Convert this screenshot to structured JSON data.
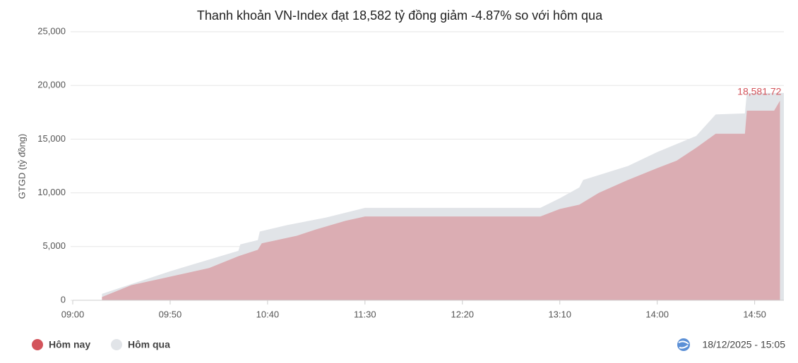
{
  "chart_data": {
    "type": "area",
    "title": "Thanh khoản VN-Index đạt 18,582 tỷ đồng giảm -4.87% so với hôm qua",
    "y_label": "GTGD (tỷ đồng)",
    "xlim": [
      "09:00",
      "15:05"
    ],
    "xticks": [
      "09:00",
      "09:50",
      "10:40",
      "11:30",
      "12:20",
      "13:10",
      "14:00",
      "14:50"
    ],
    "ylim": [
      0,
      25000
    ],
    "yticks": [
      0,
      {
        "value": 5000,
        "label": "5,000"
      },
      {
        "value": 10000,
        "label": "10,000"
      },
      {
        "value": 15000,
        "label": "15,000"
      },
      {
        "value": 20000,
        "label": "20,000"
      },
      {
        "value": 25000,
        "label": "25,000"
      }
    ],
    "grid": true,
    "series": [
      {
        "name": "Hôm qua",
        "color": "#e1e4e8",
        "x": [
          "09:15",
          "09:50",
          "10:25",
          "10:26",
          "10:35",
          "10:36",
          "10:50",
          "11:10",
          "11:30",
          "13:00",
          "13:10",
          "13:20",
          "13:22",
          "13:45",
          "14:00",
          "14:20",
          "14:30",
          "14:45",
          "14:46",
          "15:05"
        ],
        "values": [
          600,
          2700,
          4600,
          5200,
          5600,
          6400,
          7000,
          7700,
          8600,
          8600,
          9500,
          10500,
          11200,
          12500,
          13800,
          15300,
          17300,
          17400,
          19300,
          19300
        ]
      },
      {
        "name": "Hôm nay",
        "color": "#d3545b",
        "x": [
          "09:15",
          "09:30",
          "09:50",
          "10:10",
          "10:25",
          "10:35",
          "10:37",
          "10:55",
          "11:05",
          "11:20",
          "11:30",
          "13:00",
          "13:10",
          "13:20",
          "13:30",
          "13:45",
          "14:00",
          "14:10",
          "14:20",
          "14:30",
          "14:45",
          "14:46",
          "15:00",
          "15:03"
        ],
        "values": [
          300,
          1400,
          2200,
          3000,
          4100,
          4700,
          5300,
          6000,
          6600,
          7400,
          7800,
          7800,
          8500,
          8900,
          10000,
          11200,
          12300,
          13000,
          14200,
          15500,
          15500,
          17650,
          17650,
          18581.72
        ],
        "value_labels": [
          null,
          null,
          null,
          null,
          null,
          null,
          null,
          null,
          null,
          null,
          null,
          null,
          null,
          null,
          null,
          null,
          null,
          null,
          null,
          null,
          null,
          null,
          null,
          "18,581.72"
        ]
      }
    ],
    "timestamp": "18/12/2025 - 15:05"
  }
}
